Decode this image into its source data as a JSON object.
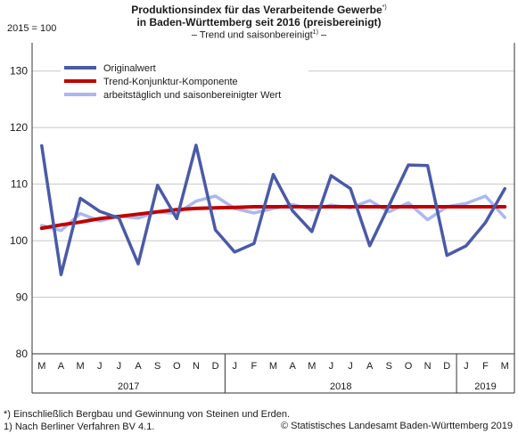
{
  "header": {
    "title_line1": "Produktionsindex für das Verarbeitende Gewerbe",
    "title_line1_sup": "*)",
    "title_line2": "in Baden-Württemberg seit 2016 (preisbereinigt)",
    "subtitle": "– Trend und saisonbereinigt",
    "subtitle_sup": "1)",
    "subtitle_end": " –",
    "unit": "2015 = 100"
  },
  "footnotes": {
    "note1": "*) Einschließlich Bergbau und Gewinnung von Steinen und Erden.",
    "note2": "1) Nach Berliner Verfahren BV 4.1.",
    "copyright": "© Statistisches Landesamt Baden-Württemberg 2019"
  },
  "colors": {
    "original": "#4a5aa8",
    "trend": "#c00000",
    "adjusted": "#a9b8f0",
    "grid": "#c8c8c8"
  },
  "chart_data": {
    "type": "line",
    "ylim": [
      80,
      135
    ],
    "yticks": [
      80,
      90,
      100,
      110,
      120,
      130
    ],
    "grid": "horizontal",
    "legend_position": "top-left",
    "categories": [
      "M",
      "A",
      "M",
      "J",
      "J",
      "A",
      "S",
      "O",
      "N",
      "D",
      "J",
      "F",
      "M",
      "A",
      "M",
      "J",
      "J",
      "A",
      "S",
      "O",
      "N",
      "D",
      "J",
      "F",
      "M"
    ],
    "years": [
      {
        "label": "2017",
        "span": 10
      },
      {
        "label": "2018",
        "span": 12
      },
      {
        "label": "2019",
        "span": 3
      }
    ],
    "series": [
      {
        "name": "Originalwert",
        "key": "original",
        "values": [
          116.8,
          94.0,
          107.5,
          105.2,
          104.0,
          95.9,
          109.8,
          103.9,
          116.9,
          101.9,
          98.0,
          99.5,
          111.7,
          105.3,
          101.6,
          111.5,
          109.2,
          99.1,
          106.2,
          113.4,
          113.3,
          97.4,
          99.1,
          103.2,
          109.2
        ]
      },
      {
        "name": "Trend-Konjunktur-Komponente",
        "key": "trend",
        "values": [
          102.2,
          102.8,
          103.3,
          103.9,
          104.3,
          104.7,
          105.1,
          105.5,
          105.7,
          105.8,
          105.9,
          106.0,
          106.0,
          106.0,
          106.0,
          106.0,
          106.0,
          106.0,
          106.0,
          106.0,
          106.0,
          106.0,
          106.0,
          106.0,
          106.0
        ]
      },
      {
        "name": "arbeitstäglich und saisonbereinigter Wert",
        "key": "adjusted",
        "values": [
          102.7,
          101.8,
          104.8,
          103.5,
          104.3,
          104.0,
          105.1,
          104.8,
          107.0,
          107.9,
          105.7,
          104.9,
          105.7,
          106.4,
          105.5,
          106.3,
          105.8,
          107.1,
          105.1,
          106.7,
          103.7,
          106.0,
          106.6,
          107.9,
          104.1
        ]
      }
    ]
  }
}
